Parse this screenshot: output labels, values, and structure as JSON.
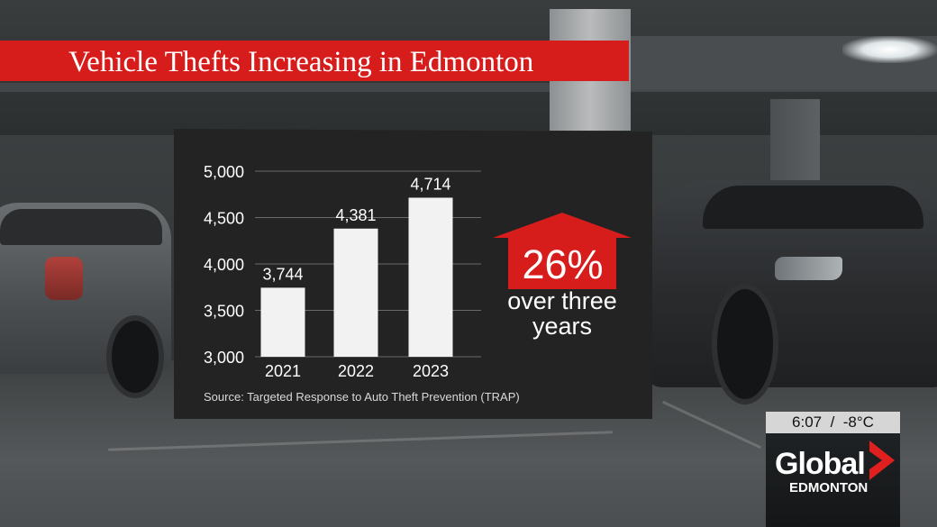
{
  "banner": {
    "title": "Vehicle Thefts Increasing in Edmonton"
  },
  "chart_data": {
    "type": "bar",
    "categories": [
      "2021",
      "2022",
      "2023"
    ],
    "values": [
      3744,
      4381,
      4714
    ],
    "value_labels": [
      "3,744",
      "4,381",
      "4,714"
    ],
    "yticks": [
      3000,
      3500,
      4000,
      4500,
      5000
    ],
    "ytick_labels": [
      "3,000",
      "3,500",
      "4,000",
      "4,500",
      "5,000"
    ],
    "ylim": [
      3000,
      5000
    ],
    "grid": true,
    "source": "Source: Targeted Response to Auto Theft Prevention (TRAP)",
    "callout": {
      "value": "26%",
      "caption": "over three years"
    },
    "colors": {
      "bar": "#f2f2f2",
      "accent": "#d71c1c",
      "panel": "#232323",
      "grid": "#6a6a6a"
    }
  },
  "bug": {
    "time": "6:07",
    "separator": "/",
    "temperature": "-8°C",
    "brand": "Global",
    "city": "EDMONTON",
    "brand_color": "#e0201f"
  }
}
